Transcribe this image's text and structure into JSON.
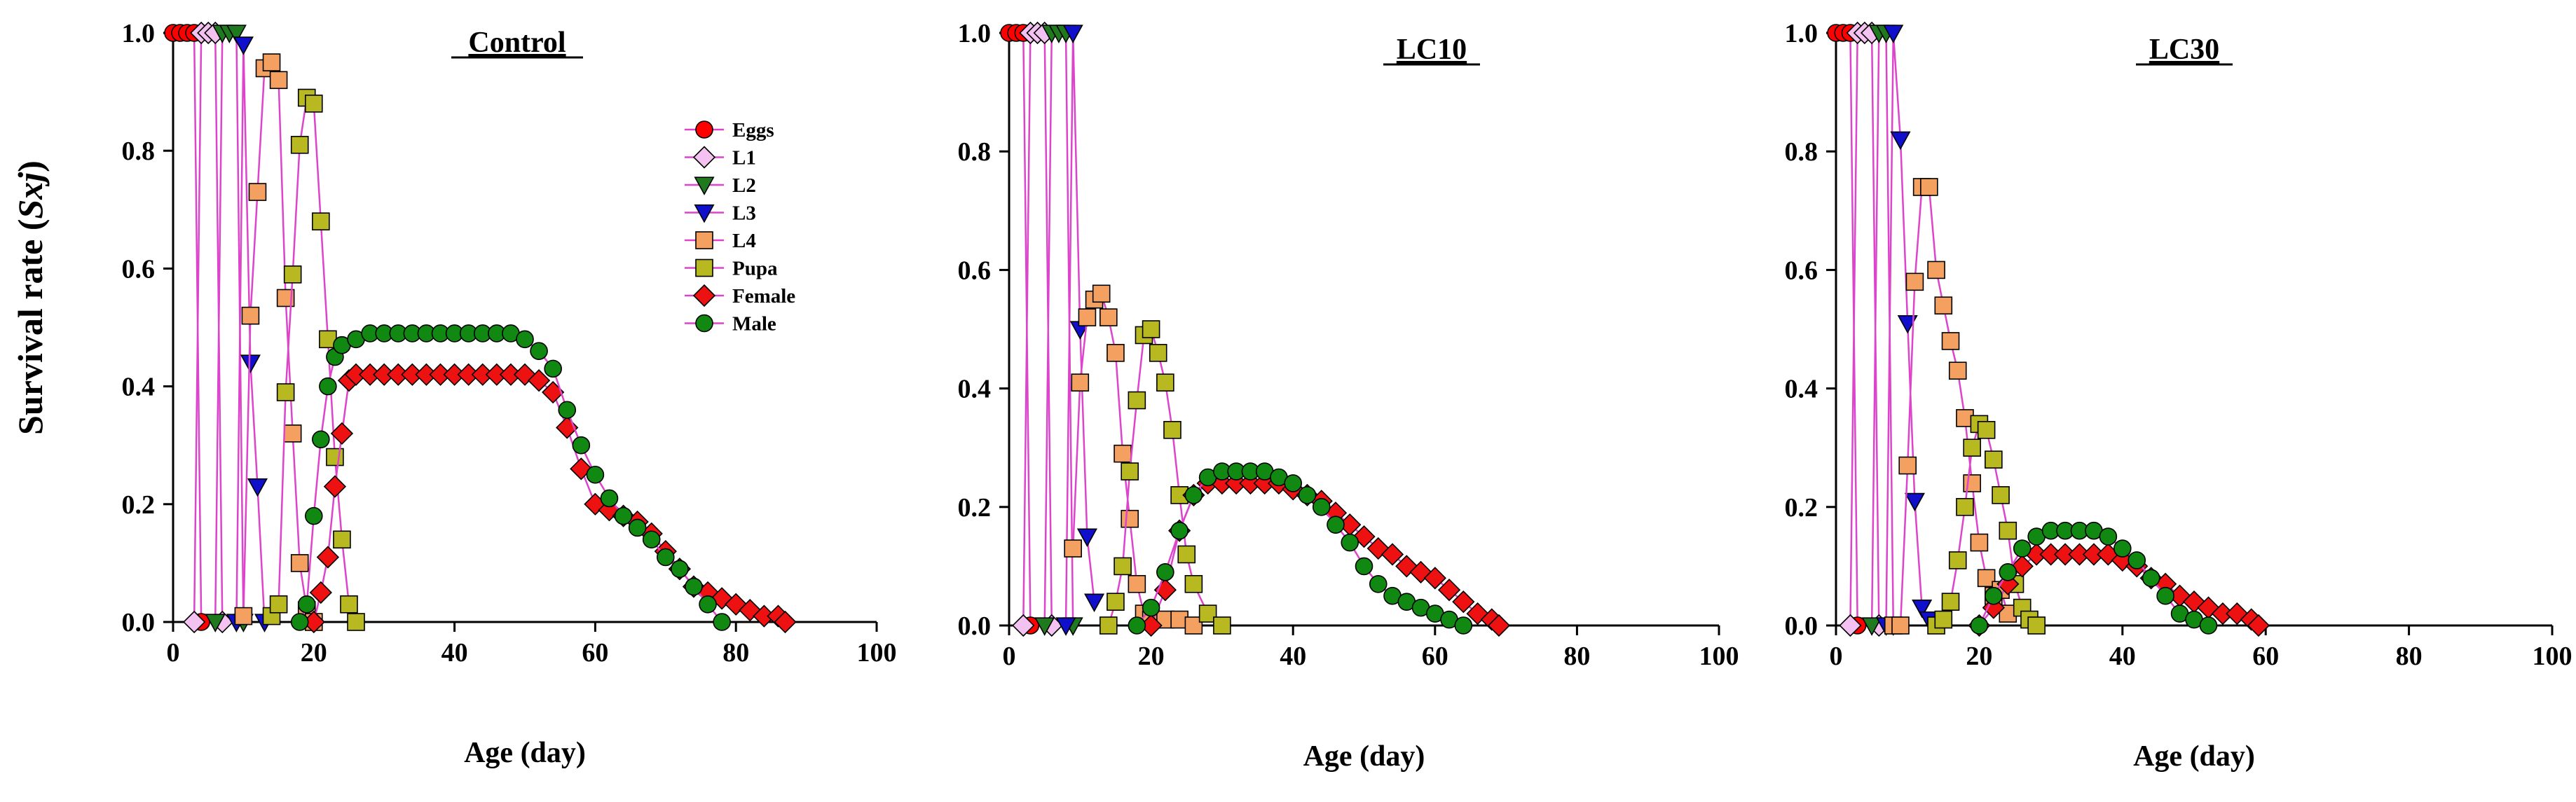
{
  "figure": {
    "ylabel_main": "Survival rate (",
    "ylabel_sym": "Sxj",
    "ylabel_close": ")"
  },
  "legend": {
    "title_entries": [
      "Eggs",
      "L1",
      "L2",
      "L3",
      "L4",
      "Pupa",
      "Female",
      "Male"
    ]
  },
  "series_styles": [
    {
      "name": "Eggs",
      "marker": "circle",
      "fill": "#ff0000"
    },
    {
      "name": "L1",
      "marker": "diamond",
      "fill": "#f4c2f0"
    },
    {
      "name": "L2",
      "marker": "triangle-down",
      "fill": "#1f7a1f"
    },
    {
      "name": "L3",
      "marker": "triangle-down",
      "fill": "#1010cc"
    },
    {
      "name": "L4",
      "marker": "square",
      "fill": "#f4a060"
    },
    {
      "name": "Pupa",
      "marker": "square",
      "fill": "#b8b820"
    },
    {
      "name": "Female",
      "marker": "diamond",
      "fill": "#ee1111"
    },
    {
      "name": "Male",
      "marker": "circle",
      "fill": "#118811"
    }
  ],
  "line_color": "#dd44cc",
  "chart_data": [
    {
      "type": "line",
      "title": "Control",
      "xlabel": "Age (day)",
      "ylabel": "Survival rate (Sxj)",
      "xlim": [
        0,
        100
      ],
      "ylim": [
        0,
        1
      ],
      "xticks": [
        "0",
        "20",
        "40",
        "60",
        "80",
        "100"
      ],
      "yticks": [
        "0.0",
        "0.2",
        "0.4",
        "0.6",
        "0.8",
        "1.0"
      ],
      "series": [
        {
          "name": "Eggs",
          "x": [
            0,
            1,
            2,
            3,
            4
          ],
          "y": [
            1,
            1,
            1,
            1,
            0
          ]
        },
        {
          "name": "L1",
          "x": [
            3,
            4,
            5,
            6,
            7
          ],
          "y": [
            0,
            1,
            1,
            1,
            0
          ]
        },
        {
          "name": "L2",
          "x": [
            6,
            7,
            8,
            9,
            10
          ],
          "y": [
            0,
            1,
            1,
            1,
            0
          ]
        },
        {
          "name": "L3",
          "x": [
            9,
            10,
            11,
            12,
            13
          ],
          "y": [
            0,
            0.98,
            0.44,
            0.23,
            0
          ]
        },
        {
          "name": "L4",
          "x": [
            10,
            11,
            12,
            13,
            14,
            15,
            16,
            17,
            18,
            19,
            20
          ],
          "y": [
            0.01,
            0.52,
            0.73,
            0.94,
            0.95,
            0.92,
            0.55,
            0.32,
            0.1,
            0.02,
            0
          ]
        },
        {
          "name": "Pupa",
          "x": [
            14,
            15,
            16,
            17,
            18,
            19,
            20,
            21,
            22,
            23,
            24,
            25,
            26
          ],
          "y": [
            0.01,
            0.03,
            0.39,
            0.59,
            0.81,
            0.89,
            0.88,
            0.68,
            0.48,
            0.28,
            0.14,
            0.03,
            0
          ]
        },
        {
          "name": "Female",
          "x": [
            20,
            21,
            22,
            23,
            24,
            25,
            26,
            28,
            30,
            32,
            34,
            36,
            38,
            40,
            42,
            44,
            46,
            48,
            50,
            52,
            54,
            56,
            58,
            60,
            62,
            64,
            66,
            68,
            70,
            72,
            74,
            76,
            78,
            80,
            82,
            84,
            86,
            87
          ],
          "y": [
            0,
            0.05,
            0.11,
            0.23,
            0.32,
            0.41,
            0.42,
            0.42,
            0.42,
            0.42,
            0.42,
            0.42,
            0.42,
            0.42,
            0.42,
            0.42,
            0.42,
            0.42,
            0.42,
            0.41,
            0.39,
            0.33,
            0.26,
            0.2,
            0.19,
            0.18,
            0.17,
            0.15,
            0.12,
            0.09,
            0.06,
            0.05,
            0.04,
            0.03,
            0.02,
            0.01,
            0.01,
            0
          ]
        },
        {
          "name": "Male",
          "x": [
            18,
            19,
            20,
            21,
            22,
            23,
            24,
            26,
            28,
            30,
            32,
            34,
            36,
            38,
            40,
            42,
            44,
            46,
            48,
            50,
            52,
            54,
            56,
            58,
            60,
            62,
            64,
            66,
            68,
            70,
            72,
            74,
            76,
            78
          ],
          "y": [
            0,
            0.03,
            0.18,
            0.31,
            0.4,
            0.45,
            0.47,
            0.48,
            0.49,
            0.49,
            0.49,
            0.49,
            0.49,
            0.49,
            0.49,
            0.49,
            0.49,
            0.49,
            0.49,
            0.48,
            0.46,
            0.43,
            0.36,
            0.3,
            0.25,
            0.21,
            0.18,
            0.16,
            0.14,
            0.11,
            0.09,
            0.06,
            0.03,
            0
          ]
        }
      ]
    },
    {
      "type": "line",
      "title": "LC10",
      "xlabel": "Age (day)",
      "ylabel": "Survival rate (Sxj)",
      "xlim": [
        0,
        100
      ],
      "ylim": [
        0,
        1
      ],
      "xticks": [
        "0",
        "20",
        "40",
        "60",
        "80",
        "100"
      ],
      "yticks": [
        "0.0",
        "0.2",
        "0.4",
        "0.6",
        "0.8",
        "1.0"
      ],
      "series": [
        {
          "name": "Eggs",
          "x": [
            0,
            1,
            2,
            3
          ],
          "y": [
            1,
            1,
            1,
            0
          ]
        },
        {
          "name": "L1",
          "x": [
            2,
            3,
            4,
            5,
            6
          ],
          "y": [
            0,
            1,
            1,
            1,
            0
          ]
        },
        {
          "name": "L2",
          "x": [
            5,
            6,
            7,
            8,
            9
          ],
          "y": [
            0,
            1,
            1,
            1,
            0
          ]
        },
        {
          "name": "L3",
          "x": [
            8,
            9,
            10,
            11,
            12
          ],
          "y": [
            0,
            1,
            0.5,
            0.15,
            0.04
          ]
        },
        {
          "name": "L4",
          "x": [
            9,
            10,
            11,
            12,
            13,
            14,
            15,
            16,
            17,
            18,
            19,
            20,
            22,
            24,
            26
          ],
          "y": [
            0.13,
            0.41,
            0.52,
            0.55,
            0.56,
            0.52,
            0.46,
            0.29,
            0.18,
            0.07,
            0.02,
            0.01,
            0.01,
            0.01,
            0
          ]
        },
        {
          "name": "Pupa",
          "x": [
            14,
            15,
            16,
            17,
            18,
            19,
            20,
            21,
            22,
            23,
            24,
            25,
            26,
            28,
            30
          ],
          "y": [
            0,
            0.04,
            0.1,
            0.26,
            0.38,
            0.49,
            0.5,
            0.46,
            0.41,
            0.33,
            0.22,
            0.12,
            0.07,
            0.02,
            0
          ]
        },
        {
          "name": "Female",
          "x": [
            20,
            22,
            24,
            26,
            28,
            30,
            32,
            34,
            36,
            38,
            40,
            42,
            44,
            46,
            48,
            50,
            52,
            54,
            56,
            58,
            60,
            62,
            64,
            66,
            68,
            69
          ],
          "y": [
            0,
            0.06,
            0.16,
            0.22,
            0.24,
            0.24,
            0.24,
            0.24,
            0.24,
            0.24,
            0.23,
            0.22,
            0.21,
            0.19,
            0.17,
            0.15,
            0.13,
            0.12,
            0.1,
            0.09,
            0.08,
            0.06,
            0.04,
            0.02,
            0.01,
            0
          ]
        },
        {
          "name": "Male",
          "x": [
            18,
            20,
            22,
            24,
            26,
            28,
            30,
            32,
            34,
            36,
            38,
            40,
            42,
            44,
            46,
            48,
            50,
            52,
            54,
            56,
            58,
            60,
            62,
            64
          ],
          "y": [
            0,
            0.03,
            0.09,
            0.16,
            0.22,
            0.25,
            0.26,
            0.26,
            0.26,
            0.26,
            0.25,
            0.24,
            0.22,
            0.2,
            0.17,
            0.14,
            0.1,
            0.07,
            0.05,
            0.04,
            0.03,
            0.02,
            0.01,
            0
          ]
        }
      ]
    },
    {
      "type": "line",
      "title": "LC30",
      "xlabel": "Age (day)",
      "ylabel": "Survival rate (Sxj)",
      "xlim": [
        0,
        100
      ],
      "ylim": [
        0,
        1
      ],
      "xticks": [
        "0",
        "20",
        "40",
        "60",
        "80",
        "100"
      ],
      "yticks": [
        "0.0",
        "0.2",
        "0.4",
        "0.6",
        "0.8",
        "1.0"
      ],
      "series": [
        {
          "name": "Eggs",
          "x": [
            0,
            1,
            2,
            3
          ],
          "y": [
            1,
            1,
            1,
            0
          ]
        },
        {
          "name": "L1",
          "x": [
            2,
            3,
            4,
            5,
            6
          ],
          "y": [
            0,
            1,
            1,
            1,
            0
          ]
        },
        {
          "name": "L2",
          "x": [
            5,
            6,
            7,
            8
          ],
          "y": [
            0,
            1,
            1,
            0
          ]
        },
        {
          "name": "L3",
          "x": [
            7,
            8,
            9,
            10,
            11,
            12,
            13
          ],
          "y": [
            0,
            1,
            0.82,
            0.51,
            0.21,
            0.03,
            0.01
          ]
        },
        {
          "name": "L4",
          "x": [
            8,
            9,
            10,
            11,
            12,
            13,
            14,
            15,
            16,
            17,
            18,
            19,
            20,
            21,
            22,
            23,
            24
          ],
          "y": [
            0,
            0,
            0.27,
            0.58,
            0.74,
            0.74,
            0.6,
            0.54,
            0.48,
            0.43,
            0.35,
            0.24,
            0.14,
            0.08,
            0.05,
            0.06,
            0.02
          ]
        },
        {
          "name": "Pupa",
          "x": [
            14,
            15,
            16,
            17,
            18,
            19,
            20,
            21,
            22,
            23,
            24,
            25,
            26,
            27,
            28
          ],
          "y": [
            0,
            0.01,
            0.04,
            0.11,
            0.2,
            0.3,
            0.34,
            0.33,
            0.28,
            0.22,
            0.16,
            0.07,
            0.03,
            0.01,
            0
          ]
        },
        {
          "name": "Female",
          "x": [
            20,
            22,
            24,
            26,
            28,
            30,
            32,
            34,
            36,
            38,
            40,
            42,
            44,
            46,
            48,
            50,
            52,
            54,
            56,
            58,
            59
          ],
          "y": [
            0,
            0.03,
            0.07,
            0.1,
            0.12,
            0.12,
            0.12,
            0.12,
            0.12,
            0.12,
            0.11,
            0.1,
            0.08,
            0.07,
            0.05,
            0.04,
            0.03,
            0.02,
            0.02,
            0.01,
            0
          ]
        },
        {
          "name": "Male",
          "x": [
            20,
            22,
            24,
            26,
            28,
            30,
            32,
            34,
            36,
            38,
            40,
            42,
            44,
            46,
            48,
            50,
            52
          ],
          "y": [
            0,
            0.05,
            0.09,
            0.13,
            0.15,
            0.16,
            0.16,
            0.16,
            0.16,
            0.15,
            0.13,
            0.11,
            0.08,
            0.05,
            0.02,
            0.01,
            0
          ]
        }
      ]
    }
  ]
}
